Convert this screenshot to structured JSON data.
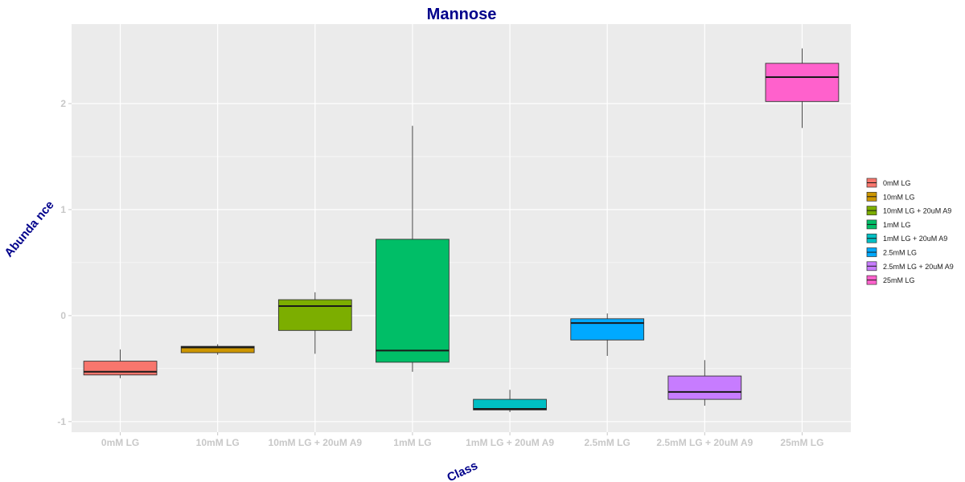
{
  "chart_data": {
    "type": "boxplot",
    "title": "Mannose",
    "xlabel": "Class",
    "ylabel": "Abunda nce",
    "ylim": [
      -1.1,
      2.75
    ],
    "yticks": [
      -1,
      0,
      1,
      2
    ],
    "grid": true,
    "legend_position": "right",
    "categories": [
      "0mM LG",
      "10mM LG",
      "10mM LG + 20uM A9",
      "1mM LG",
      "1mM LG + 20uM A9",
      "2.5mM LG",
      "2.5mM LG + 20uM A9",
      "25mM LG"
    ],
    "colors": [
      "#F8766D",
      "#CD9600",
      "#7CAE00",
      "#00BE67",
      "#00BFC4",
      "#00A9FF",
      "#C77CFF",
      "#FF61CC"
    ],
    "boxes": [
      {
        "min": -0.59,
        "q1": -0.56,
        "median": -0.53,
        "q3": -0.43,
        "max": -0.32
      },
      {
        "min": -0.37,
        "q1": -0.35,
        "median": -0.3,
        "q3": -0.29,
        "max": -0.27
      },
      {
        "min": -0.36,
        "q1": -0.14,
        "median": 0.09,
        "q3": 0.15,
        "max": 0.22
      },
      {
        "min": -0.53,
        "q1": -0.44,
        "median": -0.33,
        "q3": 0.72,
        "max": 1.79
      },
      {
        "min": -0.91,
        "q1": -0.89,
        "median": -0.88,
        "q3": -0.79,
        "max": -0.7
      },
      {
        "min": -0.38,
        "q1": -0.23,
        "median": -0.07,
        "q3": -0.03,
        "max": 0.02
      },
      {
        "min": -0.85,
        "q1": -0.79,
        "median": -0.72,
        "q3": -0.57,
        "max": -0.42
      },
      {
        "min": 1.77,
        "q1": 2.02,
        "median": 2.25,
        "q3": 2.38,
        "max": 2.52
      }
    ]
  }
}
